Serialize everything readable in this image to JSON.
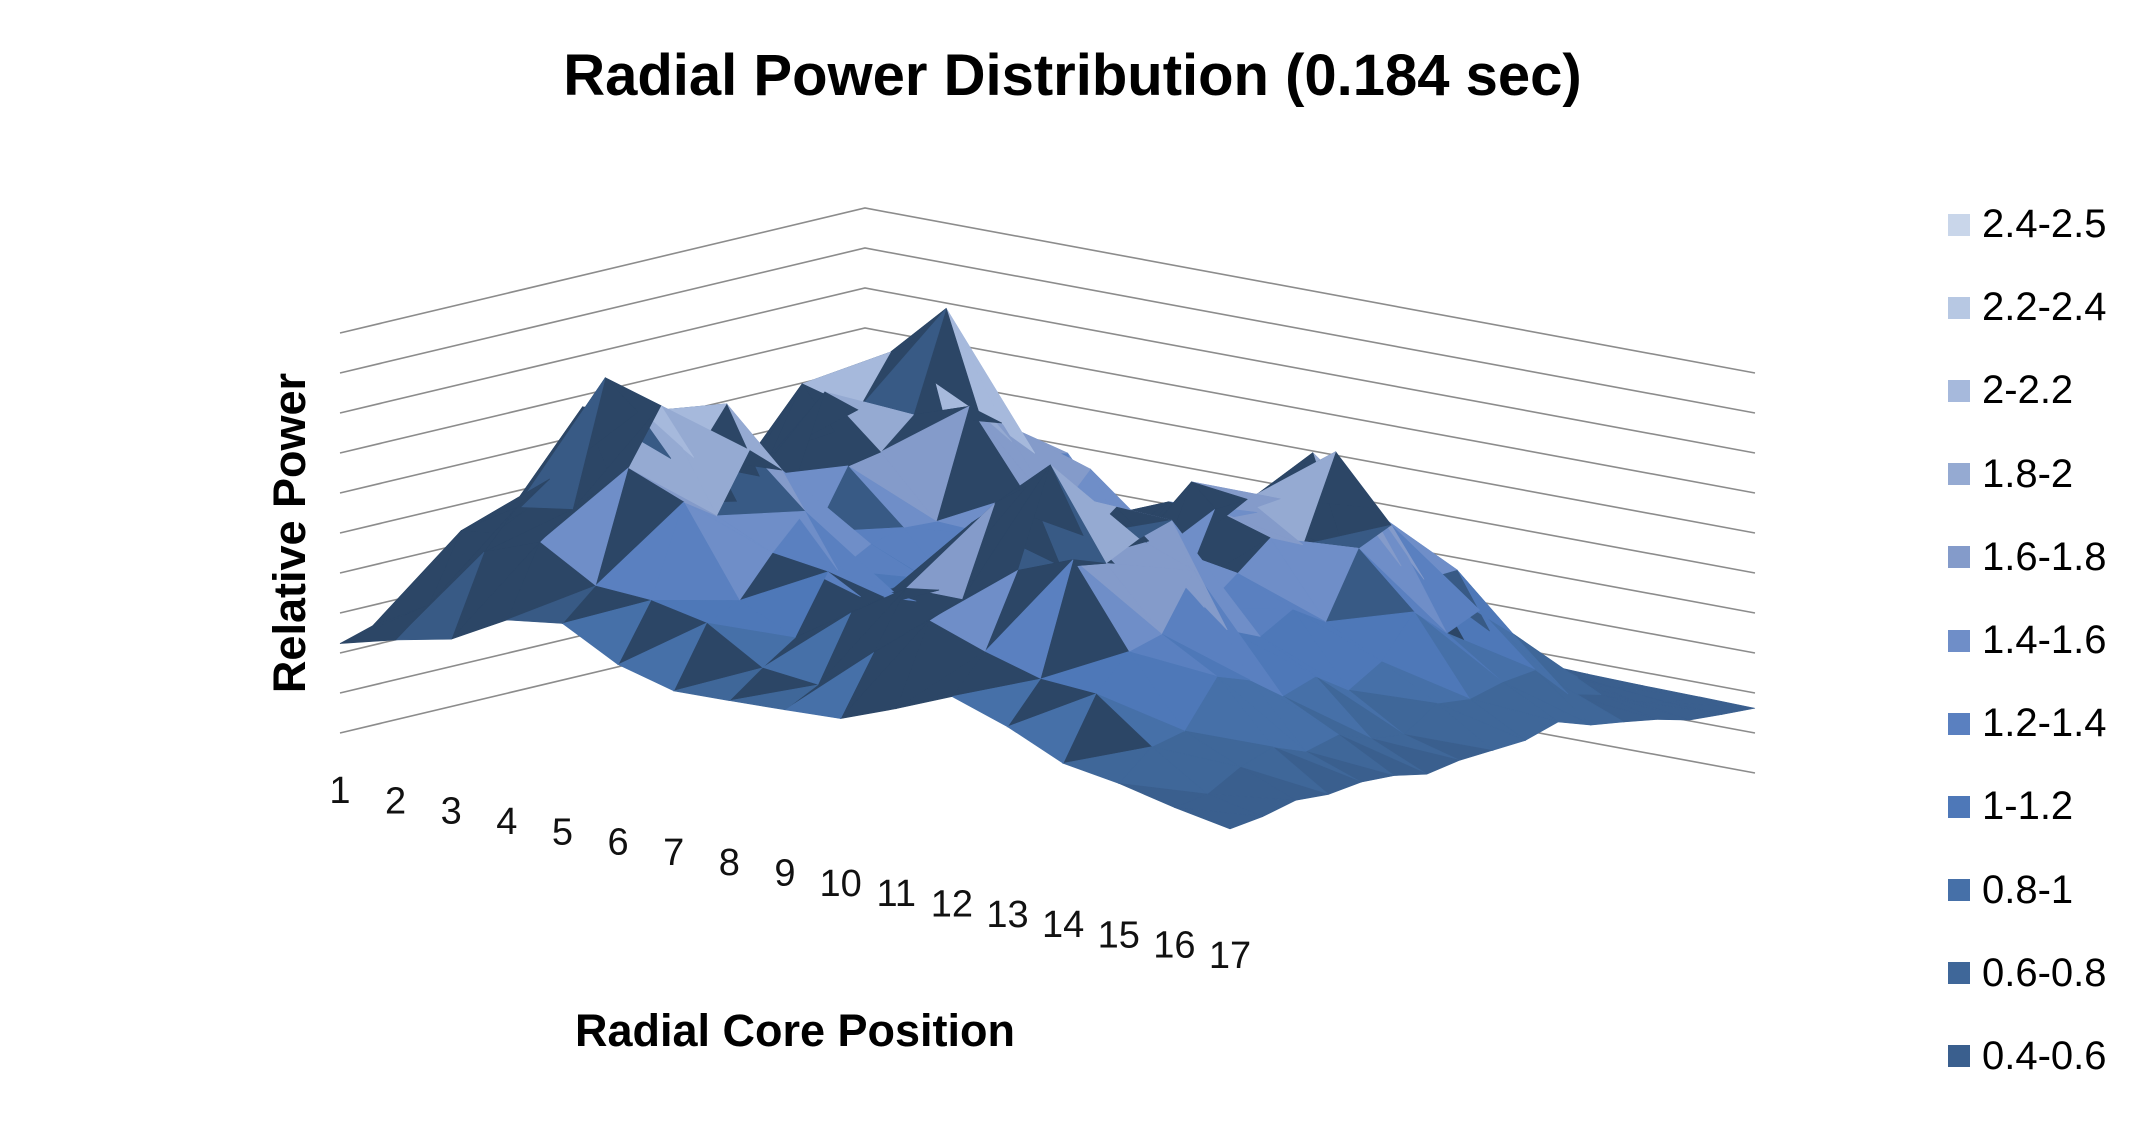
{
  "chart_data": {
    "type": "surface-3d",
    "title": "Radial Power Distribution (0.184 sec)",
    "xlabel": "Radial Core Position",
    "ylabel": "Relative Power",
    "x_ticks": [
      "1",
      "2",
      "3",
      "4",
      "5",
      "6",
      "7",
      "8",
      "9",
      "10",
      "11",
      "12",
      "13",
      "14",
      "15",
      "16",
      "17"
    ],
    "zlim": [
      0,
      2.5
    ],
    "grid": true,
    "legend_position": "right",
    "legend": [
      {
        "label": "2.4-2.5",
        "color": "#c9d6ea"
      },
      {
        "label": "2.2-2.4",
        "color": "#b7c8e3"
      },
      {
        "label": "2-2.2",
        "color": "#a6b9dc"
      },
      {
        "label": "1.8-2",
        "color": "#95aad2"
      },
      {
        "label": "1.6-1.8",
        "color": "#849bca"
      },
      {
        "label": "1.4-1.6",
        "color": "#6f8ec8"
      },
      {
        "label": "1.2-1.4",
        "color": "#5a80c0"
      },
      {
        "label": "1-1.2",
        "color": "#4e78b8"
      },
      {
        "label": "0.8-1",
        "color": "#4670a8"
      },
      {
        "label": "0.6-0.8",
        "color": "#3f6799"
      },
      {
        "label": "0.4-0.6",
        "color": "#3a5f8e"
      }
    ],
    "peaks": [
      {
        "row": 4.5,
        "col": 4.5,
        "value": 2.4
      },
      {
        "row": 4.5,
        "col": 12.0,
        "value": 2.3
      },
      {
        "row": 11.0,
        "col": 5.5,
        "value": 2.5
      },
      {
        "row": 11.0,
        "col": 12.5,
        "value": 2.1
      }
    ],
    "base_value": 0.4
  }
}
